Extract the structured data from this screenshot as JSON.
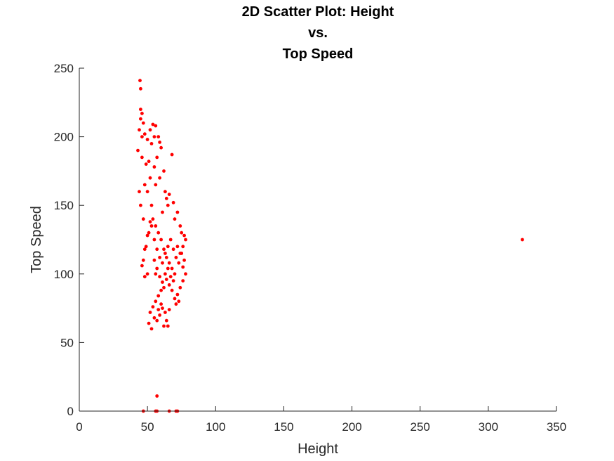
{
  "chart_data": {
    "type": "scatter",
    "title": [
      "2D Scatter Plot: Height",
      "vs.",
      "Top Speed"
    ],
    "xlabel": "Height",
    "ylabel": "Top Speed",
    "xlim": [
      0,
      350
    ],
    "ylim": [
      0,
      250
    ],
    "xticks": [
      "0",
      "50",
      "100",
      "150",
      "200",
      "250",
      "300",
      "350"
    ],
    "yticks": [
      "0",
      "50",
      "100",
      "150",
      "200",
      "250"
    ],
    "grid": false,
    "marker_color": "#ff0000",
    "axis_color": "#262626",
    "points": [
      [
        44.5,
        241
      ],
      [
        45,
        235
      ],
      [
        45,
        220
      ],
      [
        46,
        217
      ],
      [
        45,
        213
      ],
      [
        47,
        210
      ],
      [
        44,
        205
      ],
      [
        46,
        200
      ],
      [
        48,
        202
      ],
      [
        50,
        198
      ],
      [
        52,
        205
      ],
      [
        54,
        209
      ],
      [
        56,
        208
      ],
      [
        55,
        200
      ],
      [
        53,
        195
      ],
      [
        43,
        190
      ],
      [
        46,
        185
      ],
      [
        49,
        180
      ],
      [
        51,
        182
      ],
      [
        55,
        178
      ],
      [
        58,
        200
      ],
      [
        59,
        196
      ],
      [
        60,
        192
      ],
      [
        57,
        185
      ],
      [
        52,
        170
      ],
      [
        48,
        165
      ],
      [
        44,
        160
      ],
      [
        45,
        150
      ],
      [
        47,
        140
      ],
      [
        50,
        160
      ],
      [
        53,
        150
      ],
      [
        56,
        165
      ],
      [
        59,
        170
      ],
      [
        62,
        175
      ],
      [
        68,
        187
      ],
      [
        63,
        160
      ],
      [
        65,
        150
      ],
      [
        61,
        145
      ],
      [
        64,
        155
      ],
      [
        66,
        158
      ],
      [
        69,
        152
      ],
      [
        70,
        140
      ],
      [
        72,
        145
      ],
      [
        74,
        135
      ],
      [
        75,
        130
      ],
      [
        77,
        128
      ],
      [
        78,
        125
      ],
      [
        76,
        120
      ],
      [
        75,
        115
      ],
      [
        77,
        110
      ],
      [
        78,
        100
      ],
      [
        76,
        95
      ],
      [
        74,
        90
      ],
      [
        72,
        85
      ],
      [
        70,
        82
      ],
      [
        68,
        88
      ],
      [
        66,
        92
      ],
      [
        64,
        96
      ],
      [
        62,
        90
      ],
      [
        60,
        88
      ],
      [
        58,
        84
      ],
      [
        56,
        80
      ],
      [
        54,
        76
      ],
      [
        52,
        72
      ],
      [
        55,
        68
      ],
      [
        57,
        66
      ],
      [
        59,
        70
      ],
      [
        61,
        75
      ],
      [
        63,
        72
      ],
      [
        64,
        66
      ],
      [
        62,
        62
      ],
      [
        65,
        62
      ],
      [
        51,
        64
      ],
      [
        53,
        60
      ],
      [
        58,
        74
      ],
      [
        71,
        78
      ],
      [
        73,
        80
      ],
      [
        66,
        74
      ],
      [
        60,
        78
      ],
      [
        56,
        100
      ],
      [
        50,
        100
      ],
      [
        48,
        98
      ],
      [
        47,
        110
      ],
      [
        49,
        120
      ],
      [
        51,
        130
      ],
      [
        53,
        135
      ],
      [
        55,
        125
      ],
      [
        57,
        118
      ],
      [
        59,
        112
      ],
      [
        61,
        108
      ],
      [
        63,
        115
      ],
      [
        65,
        120
      ],
      [
        67,
        125
      ],
      [
        69,
        118
      ],
      [
        71,
        112
      ],
      [
        73,
        108
      ],
      [
        70,
        100
      ],
      [
        68,
        104
      ],
      [
        66,
        108
      ],
      [
        64,
        112
      ],
      [
        62,
        118
      ],
      [
        60,
        125
      ],
      [
        58,
        130
      ],
      [
        56,
        135
      ],
      [
        54,
        140
      ],
      [
        52,
        138
      ],
      [
        50,
        128
      ],
      [
        48,
        118
      ],
      [
        46,
        106
      ],
      [
        55,
        110
      ],
      [
        57,
        104
      ],
      [
        59,
        98
      ],
      [
        61,
        94
      ],
      [
        63,
        100
      ],
      [
        65,
        104
      ],
      [
        67,
        98
      ],
      [
        69,
        95
      ],
      [
        72,
        120
      ],
      [
        74,
        115
      ],
      [
        76,
        105
      ],
      [
        57,
        11
      ],
      [
        47,
        0
      ],
      [
        56,
        0
      ],
      [
        57,
        0
      ],
      [
        66,
        0
      ],
      [
        71,
        0
      ],
      [
        72,
        0
      ],
      [
        325,
        125
      ]
    ]
  }
}
